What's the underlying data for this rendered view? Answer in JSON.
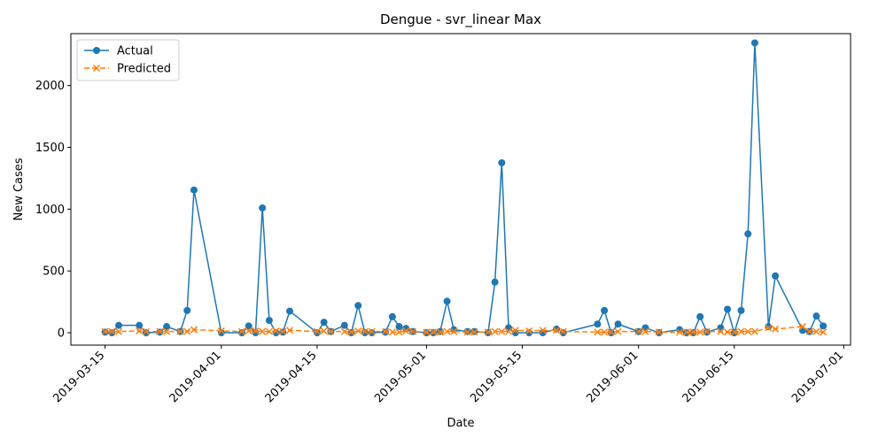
{
  "chart_data": {
    "type": "line",
    "title": "Dengue - svr_linear Max",
    "xlabel": "Date",
    "ylabel": "New Cases",
    "x_range": [
      "2019-03-10",
      "2019-07-02"
    ],
    "ylim": [
      -100,
      2420
    ],
    "x_ticks": [
      "2019-03-15",
      "2019-04-01",
      "2019-04-15",
      "2019-05-01",
      "2019-05-15",
      "2019-06-01",
      "2019-06-15",
      "2019-07-01"
    ],
    "y_ticks": [
      0,
      500,
      1000,
      1500,
      2000
    ],
    "legend_position": "upper-left",
    "grid": false,
    "series": [
      {
        "name": "Actual",
        "color": "#1f77b4",
        "style": "solid",
        "marker": "circle",
        "points": [
          [
            "2019-03-15",
            5
          ],
          [
            "2019-03-16",
            0
          ],
          [
            "2019-03-17",
            60
          ],
          [
            "2019-03-20",
            60
          ],
          [
            "2019-03-21",
            0
          ],
          [
            "2019-03-23",
            5
          ],
          [
            "2019-03-24",
            50
          ],
          [
            "2019-03-26",
            10
          ],
          [
            "2019-03-27",
            180
          ],
          [
            "2019-03-28",
            1155
          ],
          [
            "2019-04-01",
            0
          ],
          [
            "2019-04-04",
            0
          ],
          [
            "2019-04-05",
            55
          ],
          [
            "2019-04-06",
            0
          ],
          [
            "2019-04-07",
            1010
          ],
          [
            "2019-04-08",
            100
          ],
          [
            "2019-04-09",
            0
          ],
          [
            "2019-04-10",
            5
          ],
          [
            "2019-04-11",
            175
          ],
          [
            "2019-04-15",
            0
          ],
          [
            "2019-04-16",
            85
          ],
          [
            "2019-04-17",
            10
          ],
          [
            "2019-04-19",
            60
          ],
          [
            "2019-04-20",
            0
          ],
          [
            "2019-04-21",
            220
          ],
          [
            "2019-04-22",
            0
          ],
          [
            "2019-04-23",
            0
          ],
          [
            "2019-04-25",
            5
          ],
          [
            "2019-04-26",
            130
          ],
          [
            "2019-04-27",
            50
          ],
          [
            "2019-04-28",
            35
          ],
          [
            "2019-04-29",
            10
          ],
          [
            "2019-05-01",
            0
          ],
          [
            "2019-05-02",
            0
          ],
          [
            "2019-05-03",
            10
          ],
          [
            "2019-05-04",
            255
          ],
          [
            "2019-05-05",
            25
          ],
          [
            "2019-05-07",
            10
          ],
          [
            "2019-05-08",
            10
          ],
          [
            "2019-05-10",
            0
          ],
          [
            "2019-05-11",
            410
          ],
          [
            "2019-05-12",
            1375
          ],
          [
            "2019-05-13",
            40
          ],
          [
            "2019-05-14",
            0
          ],
          [
            "2019-05-16",
            0
          ],
          [
            "2019-05-18",
            0
          ],
          [
            "2019-05-20",
            30
          ],
          [
            "2019-05-21",
            0
          ],
          [
            "2019-05-26",
            70
          ],
          [
            "2019-05-27",
            180
          ],
          [
            "2019-05-28",
            0
          ],
          [
            "2019-05-29",
            70
          ],
          [
            "2019-06-01",
            10
          ],
          [
            "2019-06-02",
            40
          ],
          [
            "2019-06-04",
            0
          ],
          [
            "2019-06-07",
            25
          ],
          [
            "2019-06-08",
            0
          ],
          [
            "2019-06-09",
            0
          ],
          [
            "2019-06-10",
            130
          ],
          [
            "2019-06-11",
            5
          ],
          [
            "2019-06-13",
            40
          ],
          [
            "2019-06-14",
            190
          ],
          [
            "2019-06-15",
            0
          ],
          [
            "2019-06-16",
            180
          ],
          [
            "2019-06-17",
            800
          ],
          [
            "2019-06-18",
            2345
          ],
          [
            "2019-06-20",
            50
          ],
          [
            "2019-06-21",
            460
          ],
          [
            "2019-06-25",
            20
          ],
          [
            "2019-06-26",
            10
          ],
          [
            "2019-06-27",
            135
          ],
          [
            "2019-06-28",
            55
          ]
        ]
      },
      {
        "name": "Predicted",
        "color": "#ff7f0e",
        "style": "dashed",
        "marker": "x",
        "points": [
          [
            "2019-03-15",
            10
          ],
          [
            "2019-03-16",
            10
          ],
          [
            "2019-03-17",
            10
          ],
          [
            "2019-03-20",
            15
          ],
          [
            "2019-03-21",
            10
          ],
          [
            "2019-03-23",
            10
          ],
          [
            "2019-03-24",
            10
          ],
          [
            "2019-03-26",
            10
          ],
          [
            "2019-03-27",
            10
          ],
          [
            "2019-03-28",
            25
          ],
          [
            "2019-04-01",
            15
          ],
          [
            "2019-04-04",
            10
          ],
          [
            "2019-04-05",
            15
          ],
          [
            "2019-04-06",
            15
          ],
          [
            "2019-04-07",
            10
          ],
          [
            "2019-04-08",
            10
          ],
          [
            "2019-04-09",
            15
          ],
          [
            "2019-04-10",
            10
          ],
          [
            "2019-04-11",
            20
          ],
          [
            "2019-04-15",
            10
          ],
          [
            "2019-04-16",
            15
          ],
          [
            "2019-04-17",
            10
          ],
          [
            "2019-04-19",
            10
          ],
          [
            "2019-04-20",
            5
          ],
          [
            "2019-04-21",
            15
          ],
          [
            "2019-04-22",
            10
          ],
          [
            "2019-04-23",
            10
          ],
          [
            "2019-04-25",
            10
          ],
          [
            "2019-04-26",
            5
          ],
          [
            "2019-04-27",
            5
          ],
          [
            "2019-04-28",
            15
          ],
          [
            "2019-04-29",
            10
          ],
          [
            "2019-05-01",
            5
          ],
          [
            "2019-05-02",
            5
          ],
          [
            "2019-05-03",
            5
          ],
          [
            "2019-05-04",
            10
          ],
          [
            "2019-05-05",
            10
          ],
          [
            "2019-05-07",
            5
          ],
          [
            "2019-05-08",
            5
          ],
          [
            "2019-05-10",
            5
          ],
          [
            "2019-05-11",
            10
          ],
          [
            "2019-05-12",
            10
          ],
          [
            "2019-05-13",
            10
          ],
          [
            "2019-05-14",
            20
          ],
          [
            "2019-05-16",
            15
          ],
          [
            "2019-05-18",
            20
          ],
          [
            "2019-05-20",
            20
          ],
          [
            "2019-05-21",
            10
          ],
          [
            "2019-05-26",
            5
          ],
          [
            "2019-05-27",
            5
          ],
          [
            "2019-05-28",
            5
          ],
          [
            "2019-05-29",
            10
          ],
          [
            "2019-06-01",
            10
          ],
          [
            "2019-06-02",
            10
          ],
          [
            "2019-06-04",
            5
          ],
          [
            "2019-06-07",
            5
          ],
          [
            "2019-06-08",
            5
          ],
          [
            "2019-06-09",
            5
          ],
          [
            "2019-06-10",
            5
          ],
          [
            "2019-06-11",
            10
          ],
          [
            "2019-06-13",
            10
          ],
          [
            "2019-06-14",
            5
          ],
          [
            "2019-06-15",
            5
          ],
          [
            "2019-06-16",
            10
          ],
          [
            "2019-06-17",
            10
          ],
          [
            "2019-06-18",
            10
          ],
          [
            "2019-06-20",
            40
          ],
          [
            "2019-06-21",
            30
          ],
          [
            "2019-06-25",
            50
          ],
          [
            "2019-06-26",
            10
          ],
          [
            "2019-06-27",
            10
          ],
          [
            "2019-06-28",
            5
          ]
        ]
      }
    ]
  }
}
